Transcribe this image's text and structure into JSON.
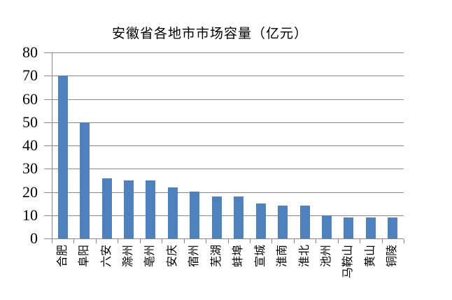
{
  "chart_data": {
    "type": "bar",
    "title": "安徽省各地市市场容量（亿元）",
    "categories": [
      "合肥",
      "阜阳",
      "六安",
      "滁州",
      "亳州",
      "安庆",
      "宿州",
      "芜湖",
      "蚌埠",
      "宣城",
      "淮南",
      "淮北",
      "池州",
      "马鞍山",
      "黄山",
      "铜陵"
    ],
    "values": [
      70,
      50,
      26,
      25,
      25,
      22,
      20,
      18,
      18,
      15,
      14,
      14,
      10,
      9,
      9,
      9
    ],
    "xlabel": "",
    "ylabel": "",
    "ylim": [
      0,
      80
    ],
    "yticks": [
      0,
      10,
      20,
      30,
      40,
      50,
      60,
      70,
      80
    ],
    "grid": "horizontal",
    "legend_position": "none",
    "bar_color": "#4F81BD",
    "grid_color": "#878787",
    "axis_color": "#878787",
    "text_color": "#000000",
    "background_color": "#FFFFFF"
  }
}
